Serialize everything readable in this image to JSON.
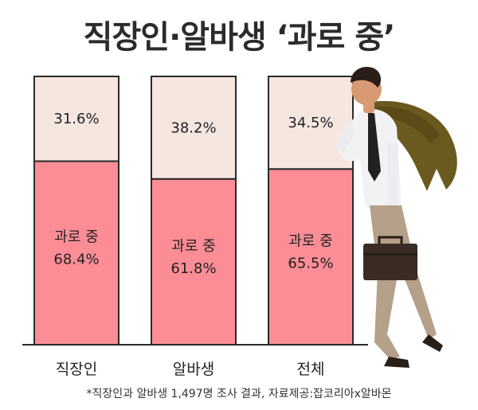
{
  "title": "직장인·알바생 ‘과로 중’",
  "footnote": "*직장인과 알바생 1,497명 조사 결과, 자료제공:잡코리아x알바몬",
  "colors": {
    "overwork": "#fc8d96",
    "not_overwork": "#f6e6e0",
    "outline": "#2a2a2a"
  },
  "chart_data": {
    "type": "bar",
    "stacked": true,
    "unit": "%",
    "title": "직장인·알바생 ‘과로 중’",
    "categories": [
      "직장인",
      "알바생",
      "전체"
    ],
    "series": [
      {
        "name": "과로 중",
        "values": [
          68.4,
          61.8,
          65.5
        ],
        "labels": [
          "68.4%",
          "61.8%",
          "65.5%"
        ]
      },
      {
        "name": "",
        "values": [
          31.6,
          38.2,
          34.5
        ],
        "labels": [
          "31.6%",
          "38.2%",
          "34.5%"
        ]
      }
    ],
    "ylim": [
      0,
      100
    ],
    "grid": false,
    "legend": "none"
  }
}
